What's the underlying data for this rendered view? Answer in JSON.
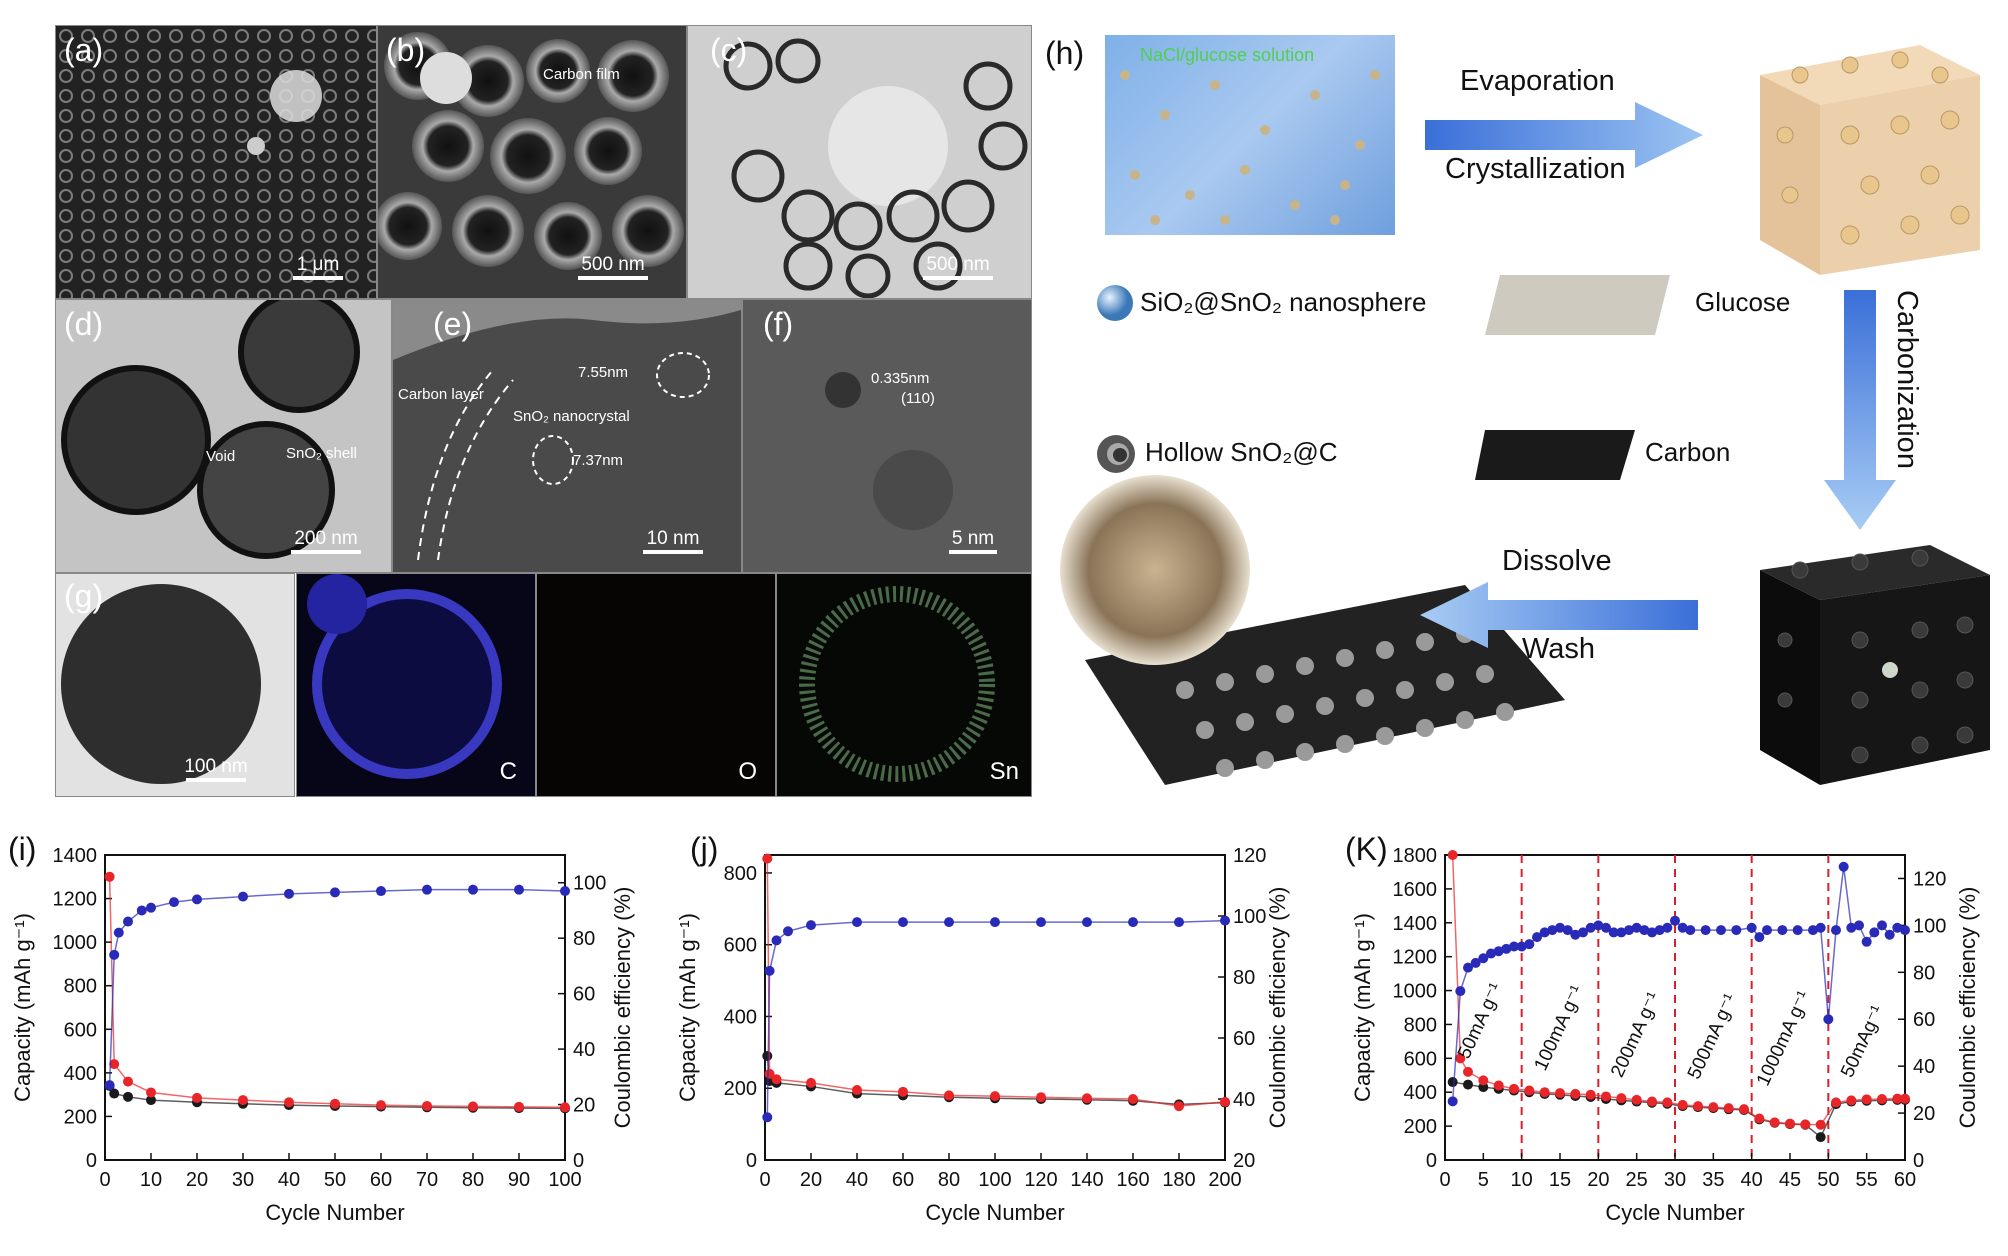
{
  "micrographs": {
    "a": {
      "label": "(a)",
      "scale": "1 μm"
    },
    "b": {
      "label": "(b)",
      "scale": "500 nm",
      "annotation": "Carbon film"
    },
    "c": {
      "label": "(c)",
      "scale": "500 nm"
    },
    "d": {
      "label": "(d)",
      "scale": "200 nm",
      "annotations": [
        "Void",
        "SnO₂ shell"
      ]
    },
    "e": {
      "label": "(e)",
      "scale": "10 nm",
      "annotations": [
        "Carbon layer",
        "SnO₂ nanocrystal",
        "7.55nm",
        "7.37nm"
      ]
    },
    "f": {
      "label": "(f)",
      "scale": "5 nm",
      "annotations": [
        "0.335nm",
        "(110)"
      ]
    },
    "g": {
      "label": "(g)",
      "scale": "100 nm",
      "elements": [
        "C",
        "O",
        "Sn"
      ]
    }
  },
  "schematic": {
    "label": "(h)",
    "solution_label": "NaCl/glucose solution",
    "arrow1": [
      "Evaporation",
      "Crystallization"
    ],
    "arrow2": "Carbonization",
    "arrow3": [
      "Dissolve",
      "Wash"
    ],
    "legend": [
      {
        "icon": "sphere-icon",
        "text": "SiO₂@SnO₂ nanosphere"
      },
      {
        "icon": "glucose-sheet-icon",
        "text": "Glucose"
      },
      {
        "icon": "hollow-sphere-icon",
        "text": "Hollow SnO₂@C"
      },
      {
        "icon": "carbon-sheet-icon",
        "text": "Carbon"
      }
    ]
  },
  "colors": {
    "red": "#e8262a",
    "black": "#1a1a1a",
    "blue": "#2a2ab8",
    "dash": "#d8202a"
  },
  "chart_data": [
    {
      "panel": "(i)",
      "type": "scatter",
      "xlabel": "Cycle Number",
      "ylabel": "Capacity (mAh g⁻¹)",
      "y2label": "Coulombic efficiency (%)",
      "xlim": [
        0,
        100
      ],
      "ylim": [
        0,
        1400
      ],
      "y2lim": [
        0,
        110
      ],
      "xticks": [
        0,
        10,
        20,
        30,
        40,
        50,
        60,
        70,
        80,
        90,
        100
      ],
      "yticks": [
        0,
        200,
        400,
        600,
        800,
        1000,
        1200,
        1400
      ],
      "y2ticks": [
        0,
        20,
        40,
        60,
        80,
        100
      ],
      "series": [
        {
          "axis": "left",
          "color": "#1a1a1a",
          "x": [
            1,
            2,
            5,
            10,
            20,
            30,
            40,
            50,
            60,
            70,
            80,
            90,
            100
          ],
          "values": [
            340,
            305,
            290,
            275,
            265,
            258,
            252,
            248,
            245,
            242,
            240,
            238,
            237
          ]
        },
        {
          "axis": "left",
          "color": "#e8262a",
          "x": [
            1,
            2,
            5,
            10,
            20,
            30,
            40,
            50,
            60,
            70,
            80,
            90,
            100
          ],
          "values": [
            1300,
            440,
            360,
            310,
            285,
            275,
            265,
            258,
            252,
            248,
            246,
            244,
            242
          ]
        },
        {
          "axis": "right",
          "color": "#2a2ab8",
          "x": [
            1,
            2,
            3,
            5,
            8,
            10,
            15,
            20,
            30,
            40,
            50,
            60,
            70,
            80,
            90,
            100
          ],
          "values": [
            27,
            74,
            82,
            86,
            90,
            91,
            93,
            94,
            95,
            96,
            96.5,
            97,
            97.5,
            97.5,
            97.5,
            97
          ]
        }
      ]
    },
    {
      "panel": "(j)",
      "type": "scatter",
      "xlabel": "Cycle Number",
      "ylabel": "Capacity (mAh g⁻¹)",
      "y2label": "Coulombic efficiency (%)",
      "xlim": [
        0,
        200
      ],
      "ylim": [
        0,
        850
      ],
      "y2lim": [
        20,
        120
      ],
      "xticks": [
        0,
        20,
        40,
        60,
        80,
        100,
        120,
        140,
        160,
        180,
        200
      ],
      "yticks": [
        0,
        200,
        400,
        600,
        800
      ],
      "y2ticks": [
        20,
        40,
        60,
        80,
        100,
        120
      ],
      "series": [
        {
          "axis": "left",
          "color": "#1a1a1a",
          "x": [
            1,
            2,
            5,
            20,
            40,
            60,
            80,
            100,
            120,
            140,
            160,
            180,
            200
          ],
          "values": [
            290,
            220,
            215,
            205,
            185,
            180,
            175,
            172,
            170,
            168,
            165,
            155,
            160
          ]
        },
        {
          "axis": "left",
          "color": "#e8262a",
          "x": [
            1,
            2,
            5,
            20,
            40,
            60,
            80,
            100,
            120,
            140,
            160,
            180,
            200
          ],
          "values": [
            840,
            240,
            225,
            215,
            195,
            190,
            180,
            178,
            175,
            172,
            170,
            150,
            162
          ]
        },
        {
          "axis": "right",
          "color": "#2a2ab8",
          "x": [
            1,
            2,
            5,
            10,
            20,
            40,
            60,
            80,
            100,
            120,
            140,
            160,
            180,
            200
          ],
          "values": [
            34,
            82,
            92,
            95,
            97,
            98,
            98,
            98,
            98,
            98,
            98,
            98,
            98,
            98.5
          ]
        }
      ]
    },
    {
      "panel": "(K)",
      "type": "scatter",
      "xlabel": "Cycle Number",
      "ylabel": "Capacity (mAh g⁻¹)",
      "y2label": "Coulombic efficiency (%)",
      "xlim": [
        0,
        60
      ],
      "ylim": [
        0,
        1800
      ],
      "y2lim": [
        0,
        130
      ],
      "xticks": [
        0,
        5,
        10,
        15,
        20,
        25,
        30,
        35,
        40,
        45,
        50,
        55,
        60
      ],
      "yticks": [
        0,
        200,
        400,
        600,
        800,
        1000,
        1200,
        1400,
        1600,
        1800
      ],
      "y2ticks": [
        0,
        20,
        40,
        60,
        80,
        100,
        120
      ],
      "dashed_x": [
        10,
        20,
        30,
        40,
        50
      ],
      "rate_labels": [
        "50mA g⁻¹",
        "100mA g⁻¹",
        "200mA g⁻¹",
        "500mA g⁻¹",
        "1000mA g⁻¹",
        "50mAg⁻¹"
      ],
      "series": [
        {
          "axis": "left",
          "color": "#1a1a1a",
          "x": [
            1,
            3,
            5,
            7,
            9,
            11,
            13,
            15,
            17,
            19,
            21,
            23,
            25,
            27,
            29,
            31,
            33,
            35,
            37,
            39,
            41,
            43,
            45,
            47,
            49,
            51,
            53,
            55,
            57,
            59,
            60
          ],
          "values": [
            460,
            445,
            430,
            420,
            410,
            400,
            390,
            385,
            378,
            372,
            360,
            352,
            345,
            338,
            332,
            318,
            312,
            306,
            300,
            295,
            240,
            220,
            212,
            208,
            135,
            330,
            345,
            350,
            352,
            355,
            355
          ]
        },
        {
          "axis": "left",
          "color": "#e8262a",
          "x": [
            1,
            2,
            3,
            5,
            7,
            9,
            11,
            13,
            15,
            17,
            19,
            21,
            23,
            25,
            27,
            29,
            31,
            33,
            35,
            37,
            39,
            41,
            43,
            45,
            47,
            49,
            51,
            53,
            55,
            57,
            59,
            60
          ],
          "values": [
            1800,
            600,
            520,
            470,
            440,
            420,
            410,
            400,
            395,
            390,
            385,
            375,
            365,
            355,
            345,
            340,
            325,
            318,
            312,
            306,
            300,
            245,
            222,
            215,
            210,
            208,
            340,
            352,
            358,
            360,
            362,
            362
          ]
        },
        {
          "axis": "right",
          "color": "#2a2ab8",
          "x": [
            1,
            2,
            3,
            4,
            5,
            6,
            7,
            8,
            9,
            10,
            11,
            12,
            13,
            14,
            15,
            16,
            17,
            18,
            19,
            20,
            21,
            22,
            23,
            24,
            25,
            26,
            27,
            28,
            29,
            30,
            31,
            32,
            34,
            36,
            38,
            40,
            41,
            42,
            44,
            46,
            48,
            49,
            50,
            51,
            52,
            53,
            54,
            55,
            56,
            57,
            58,
            59,
            60
          ],
          "values": [
            25,
            72,
            82,
            84,
            86,
            88,
            89,
            90,
            91,
            91,
            92,
            95,
            97,
            98,
            99,
            98,
            96,
            97,
            99,
            100,
            99,
            97,
            97,
            98,
            99,
            98,
            97,
            98,
            99,
            102,
            99,
            98,
            98,
            98,
            98,
            99,
            95,
            98,
            98,
            98,
            98,
            99,
            60,
            98,
            125,
            99,
            100,
            93,
            97,
            100,
            96,
            99,
            98
          ]
        }
      ]
    }
  ]
}
